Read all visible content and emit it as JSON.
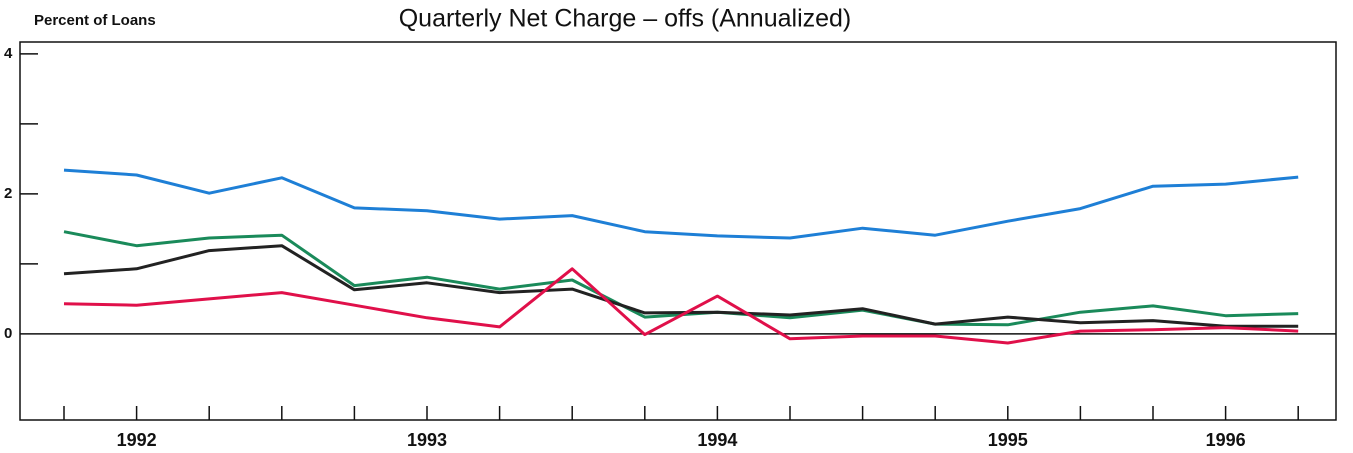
{
  "chart_data": {
    "type": "line",
    "title": "Quarterly Net Charge – offs (Annualized)",
    "y_label": "Percent of Loans",
    "categories": [
      null,
      "1992",
      null,
      null,
      null,
      "1993",
      null,
      null,
      null,
      "1994",
      null,
      null,
      null,
      "1995",
      null,
      null,
      "1996",
      null
    ],
    "series": [
      {
        "color": "#1e7fd6",
        "values": [
          2.34,
          2.27,
          2.01,
          2.23,
          1.8,
          1.76,
          1.64,
          1.69,
          1.46,
          1.4,
          1.37,
          1.51,
          1.41,
          1.61,
          1.79,
          2.11,
          2.14,
          2.24
        ]
      },
      {
        "color": "#1a8a5a",
        "values": [
          1.46,
          1.26,
          1.37,
          1.41,
          0.69,
          0.81,
          0.64,
          0.77,
          0.24,
          0.31,
          0.23,
          0.34,
          0.14,
          0.13,
          0.31,
          0.4,
          0.26,
          0.29
        ]
      },
      {
        "color": "#222222",
        "values": [
          0.86,
          0.93,
          1.19,
          1.26,
          0.63,
          0.73,
          0.59,
          0.64,
          0.3,
          0.31,
          0.27,
          0.36,
          0.14,
          0.24,
          0.16,
          0.19,
          0.11,
          0.11
        ]
      },
      {
        "color": "#e0104a",
        "values": [
          0.43,
          0.41,
          0.5,
          0.59,
          0.41,
          0.23,
          0.1,
          0.93,
          -0.01,
          0.54,
          -0.07,
          -0.03,
          -0.03,
          -0.13,
          0.04,
          0.06,
          0.09,
          0.04
        ]
      }
    ],
    "ylim": [
      -1.23,
      4.17
    ],
    "yticks": [
      0,
      2,
      4
    ],
    "y_minor_ticks": [
      1,
      3
    ]
  }
}
